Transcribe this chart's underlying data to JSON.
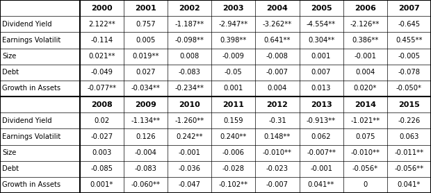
{
  "header1": [
    "",
    "2000",
    "2001",
    "2002",
    "2003",
    "2004",
    "2005",
    "2006",
    "2007"
  ],
  "header2": [
    "",
    "2008",
    "2009",
    "2010",
    "2011",
    "2012",
    "2013",
    "2014",
    "2015"
  ],
  "rows1": [
    [
      "Dividend Yield",
      "2.122**",
      "0.757",
      "-1.187**",
      "-2.947**",
      "-3.262**",
      "-4.554**",
      "-2.126**",
      "-0.645"
    ],
    [
      "Earnings Volatilit",
      "-0.114",
      "0.005",
      "-0.098**",
      "0.398**",
      "0.641**",
      "0.304**",
      "0.386**",
      "0.455**"
    ],
    [
      "Size",
      "0.021**",
      "0.019**",
      "0.008",
      "-0.009",
      "-0.008",
      "0.001",
      "-0.001",
      "-0.005"
    ],
    [
      "Debt",
      "-0.049",
      "0.027",
      "-0.083",
      "-0.05",
      "-0.007",
      "0.007",
      "0.004",
      "-0.078"
    ],
    [
      "Growth in Assets",
      "-0.077**",
      "-0.034**",
      "-0.234**",
      "0.001",
      "0.004",
      "0.013",
      "0.020*",
      "-0.050*"
    ]
  ],
  "rows2": [
    [
      "Dividend Yield",
      "0.02",
      "-1.134**",
      "-1.260**",
      "0.159",
      "-0.31",
      "-0.913**",
      "-1.021**",
      "-0.226"
    ],
    [
      "Earnings Volatilit",
      "-0.027",
      "0.126",
      "0.242**",
      "0.240**",
      "0.148**",
      "0.062",
      "0.075",
      "0.063"
    ],
    [
      "Size",
      "0.003",
      "-0.004",
      "-0.001",
      "-0.006",
      "-0.010**",
      "-0.007**",
      "-0.010**",
      "-0.011**"
    ],
    [
      "Debt",
      "-0.085",
      "-0.083",
      "-0.036",
      "-0.028",
      "-0.023",
      "-0.001",
      "-0.056*",
      "-0.056**"
    ],
    [
      "Growth in Assets",
      "0.001*",
      "-0.060**",
      "-0.047",
      "-0.102**",
      "-0.007",
      "0.041**",
      "0",
      "0.041*"
    ]
  ],
  "text_color": "#000000",
  "font_size": 7.2,
  "header_font_size": 8.0
}
